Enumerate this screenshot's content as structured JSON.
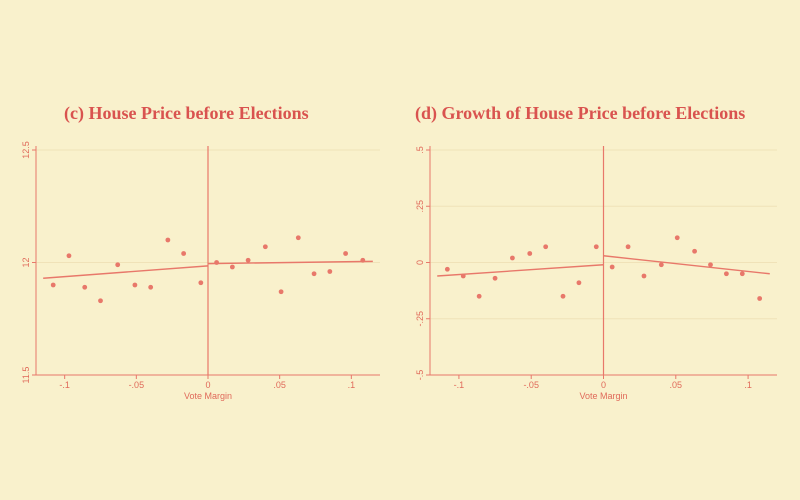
{
  "colors": {
    "background": "#f9f1cc",
    "ink": "#e8786a",
    "title": "#d9534f",
    "grid": "#f0e2b8"
  },
  "chart_data": [
    {
      "type": "scatter",
      "panel_label": "(c)",
      "title": "House Price before Elections",
      "xlabel": "Vote Margin",
      "ylabel": "",
      "xlim": [
        -0.12,
        0.12
      ],
      "ylim": [
        11.5,
        12.5
      ],
      "x_ticks": [
        {
          "v": -0.1,
          "label": "-.1"
        },
        {
          "v": -0.05,
          "label": "-.05"
        },
        {
          "v": 0,
          "label": "0"
        },
        {
          "v": 0.05,
          "label": ".05"
        },
        {
          "v": 0.1,
          "label": ".1"
        }
      ],
      "y_ticks": [
        {
          "v": 11.5,
          "label": "11.5"
        },
        {
          "v": 12,
          "label": "12"
        },
        {
          "v": 12.5,
          "label": "12.5"
        }
      ],
      "points": [
        {
          "x": -0.108,
          "y": 11.9
        },
        {
          "x": -0.097,
          "y": 12.03
        },
        {
          "x": -0.086,
          "y": 11.89
        },
        {
          "x": -0.075,
          "y": 11.83
        },
        {
          "x": -0.063,
          "y": 11.99
        },
        {
          "x": -0.051,
          "y": 11.9
        },
        {
          "x": -0.04,
          "y": 11.89
        },
        {
          "x": -0.028,
          "y": 12.1
        },
        {
          "x": -0.017,
          "y": 12.04
        },
        {
          "x": -0.005,
          "y": 11.91
        },
        {
          "x": 0.006,
          "y": 12.0
        },
        {
          "x": 0.017,
          "y": 11.98
        },
        {
          "x": 0.028,
          "y": 12.01
        },
        {
          "x": 0.04,
          "y": 12.07
        },
        {
          "x": 0.051,
          "y": 11.87
        },
        {
          "x": 0.063,
          "y": 12.11
        },
        {
          "x": 0.074,
          "y": 11.95
        },
        {
          "x": 0.085,
          "y": 11.96
        },
        {
          "x": 0.096,
          "y": 12.04
        },
        {
          "x": 0.108,
          "y": 12.01
        }
      ],
      "fit_lines": [
        {
          "x": [
            -0.115,
            0
          ],
          "y": [
            11.93,
            11.985
          ]
        },
        {
          "x": [
            0,
            0.115
          ],
          "y": [
            11.995,
            12.005
          ]
        }
      ],
      "cutoff": 0,
      "grid": true
    },
    {
      "type": "scatter",
      "panel_label": "(d)",
      "title": "Growth of House Price before Elections",
      "xlabel": "Vote Margin",
      "ylabel": "",
      "xlim": [
        -0.12,
        0.12
      ],
      "ylim": [
        -0.5,
        0.5
      ],
      "x_ticks": [
        {
          "v": -0.1,
          "label": "-.1"
        },
        {
          "v": -0.05,
          "label": "-.05"
        },
        {
          "v": 0,
          "label": "0"
        },
        {
          "v": 0.05,
          "label": ".05"
        },
        {
          "v": 0.1,
          "label": ".1"
        }
      ],
      "y_ticks": [
        {
          "v": -0.5,
          "label": "-.5"
        },
        {
          "v": -0.25,
          "label": "-.25"
        },
        {
          "v": 0,
          "label": "0"
        },
        {
          "v": 0.25,
          "label": ".25"
        },
        {
          "v": 0.5,
          "label": ".5"
        }
      ],
      "points": [
        {
          "x": -0.108,
          "y": -0.03
        },
        {
          "x": -0.097,
          "y": -0.06
        },
        {
          "x": -0.086,
          "y": -0.15
        },
        {
          "x": -0.075,
          "y": -0.07
        },
        {
          "x": -0.063,
          "y": 0.02
        },
        {
          "x": -0.051,
          "y": 0.04
        },
        {
          "x": -0.04,
          "y": 0.07
        },
        {
          "x": -0.028,
          "y": -0.15
        },
        {
          "x": -0.017,
          "y": -0.09
        },
        {
          "x": -0.005,
          "y": 0.07
        },
        {
          "x": 0.006,
          "y": -0.02
        },
        {
          "x": 0.017,
          "y": 0.07
        },
        {
          "x": 0.028,
          "y": -0.06
        },
        {
          "x": 0.04,
          "y": -0.01
        },
        {
          "x": 0.051,
          "y": 0.11
        },
        {
          "x": 0.063,
          "y": 0.05
        },
        {
          "x": 0.074,
          "y": -0.01
        },
        {
          "x": 0.085,
          "y": -0.05
        },
        {
          "x": 0.096,
          "y": -0.05
        },
        {
          "x": 0.108,
          "y": -0.16
        }
      ],
      "fit_lines": [
        {
          "x": [
            -0.115,
            0
          ],
          "y": [
            -0.06,
            -0.01
          ]
        },
        {
          "x": [
            0,
            0.115
          ],
          "y": [
            0.03,
            -0.05
          ]
        }
      ],
      "cutoff": 0,
      "grid": true
    }
  ]
}
